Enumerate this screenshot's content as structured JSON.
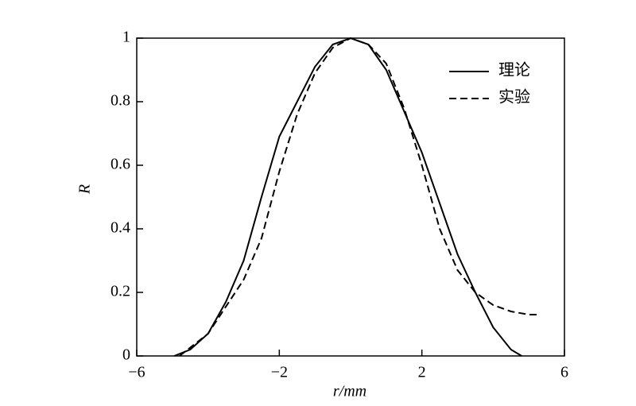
{
  "chart_data": {
    "type": "line",
    "x_label": "r/mm",
    "y_label": "R",
    "xlim": [
      -6,
      6
    ],
    "ylim": [
      0,
      1
    ],
    "xticks": [
      {
        "value": -6,
        "label": "−6"
      },
      {
        "value": -2,
        "label": "−2"
      },
      2,
      6
    ],
    "yticks": [
      0,
      0.2,
      0.4,
      0.6,
      0.8,
      1
    ],
    "legend": "upper-right",
    "series": [
      {
        "name": "理论",
        "color": "#000000",
        "line_style": "solid",
        "x": [
          -4.95,
          -4.5,
          -4,
          -3.5,
          -3,
          -2.5,
          -2,
          -1.5,
          -1,
          -0.5,
          0,
          0.5,
          1,
          1.5,
          2,
          2.5,
          3,
          3.5,
          4,
          4.5,
          4.8
        ],
        "values": [
          0,
          0.02,
          0.07,
          0.17,
          0.3,
          0.5,
          0.69,
          0.8,
          0.91,
          0.98,
          1,
          0.98,
          0.9,
          0.77,
          0.64,
          0.48,
          0.32,
          0.2,
          0.09,
          0.02,
          0
        ]
      },
      {
        "name": "实验",
        "color": "#000000",
        "line_style": "dashed",
        "x": [
          -4.8,
          -4,
          -3,
          -2.5,
          -2,
          -1.5,
          -1,
          -0.5,
          0,
          0.5,
          1,
          1.5,
          2,
          2.5,
          3,
          3.5,
          4,
          4.5,
          5,
          5.3
        ],
        "values": [
          0,
          0.07,
          0.24,
          0.37,
          0.58,
          0.76,
          0.89,
          0.97,
          1,
          0.98,
          0.92,
          0.78,
          0.6,
          0.4,
          0.27,
          0.2,
          0.16,
          0.14,
          0.13,
          0.13
        ]
      }
    ]
  }
}
